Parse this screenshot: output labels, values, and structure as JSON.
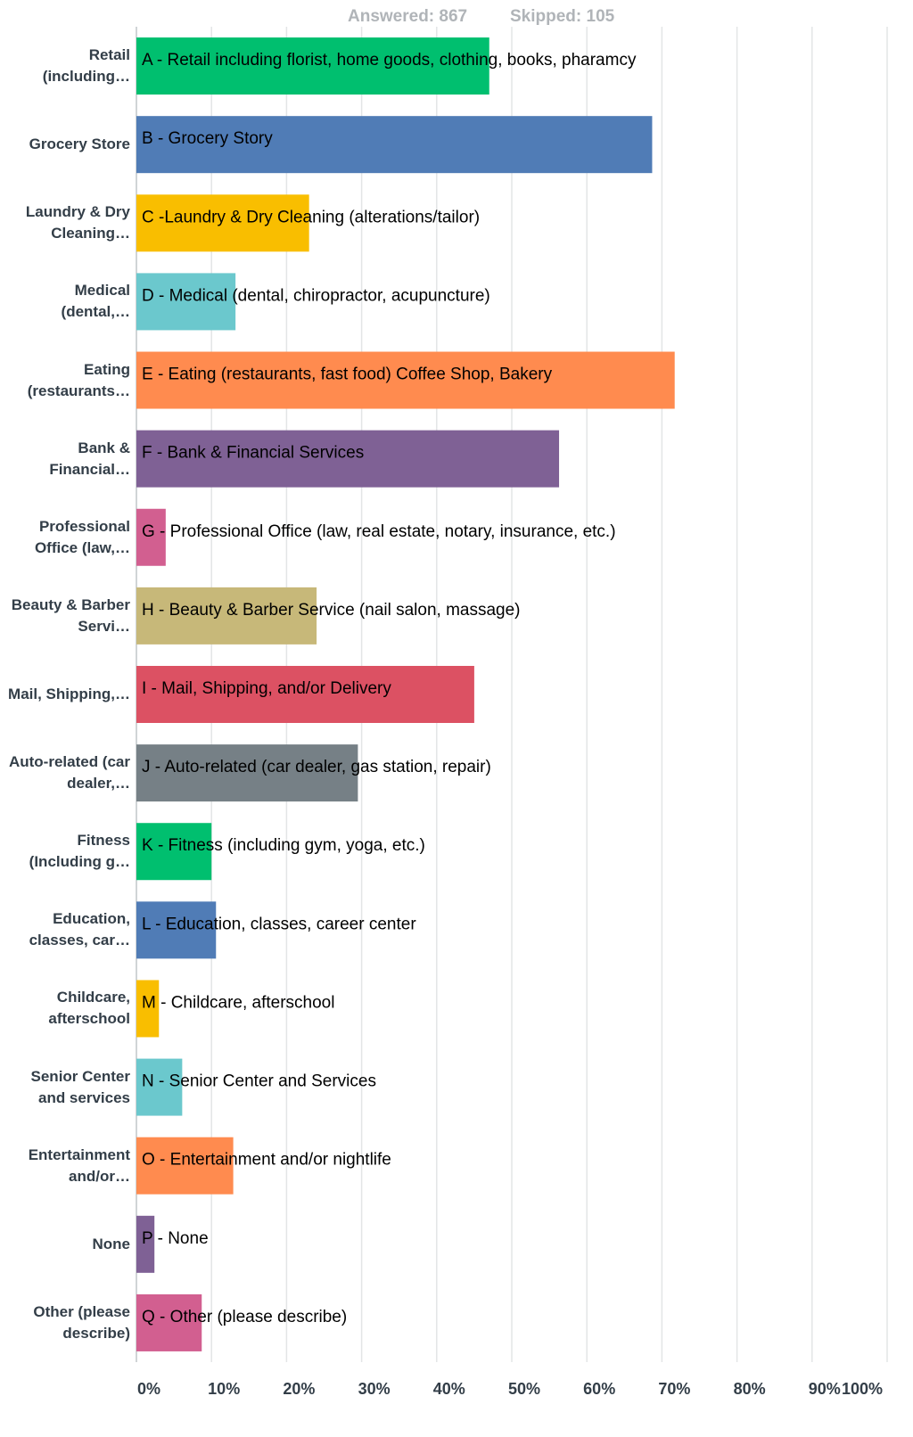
{
  "chart_data": {
    "type": "bar",
    "orientation": "horizontal",
    "answered": "Answered: 867",
    "skipped": "Skipped: 105",
    "categories": [
      "Retail (including…",
      "Grocery Store",
      "Laundry & Dry Cleaning…",
      "Medical (dental,…",
      "Eating (restaurants…",
      "Bank & Financial…",
      "Professional Office (law,…",
      "Beauty & Barber Servi…",
      "Mail, Shipping,…",
      "Auto-related (car dealer,…",
      "Fitness (Including g…",
      "Education, classes, car…",
      "Childcare, afterschool",
      "Senior Center and services",
      "Entertainment and/or…",
      "None",
      "Other (please describe)"
    ],
    "values": [
      47,
      68.7,
      23,
      13.2,
      71.7,
      56.3,
      3.9,
      24,
      45,
      29.5,
      10,
      10.6,
      3,
      6.1,
      12.9,
      2.4,
      8.7
    ],
    "bar_labels": [
      "A - Retail including  florist, home goods, clothing, books, pharamcy",
      "B - Grocery Story",
      "C -Laundry & Dry Cleaning (alterations/tailor)",
      "D - Medical (dental, chiropractor, acupuncture)",
      "E - Eating (restaurants, fast food) Coffee Shop, Bakery",
      "F - Bank & Financial Services",
      "G - Professional Office (law, real estate, notary, insurance, etc.)",
      "H - Beauty & Barber Service (nail salon, massage)",
      "I - Mail, Shipping, and/or Delivery",
      "J - Auto-related (car dealer, gas station, repair)",
      "K - Fitness (including gym, yoga, etc.)",
      "L - Education, classes, career center",
      "M - Childcare, afterschool",
      "N - Senior Center and Services",
      "O - Entertainment and/or nightlife",
      "P - None",
      "Q - Other (please describe)"
    ],
    "colors": [
      "#00bf6f",
      "#507cb6",
      "#f9be00",
      "#6bc8cd",
      "#ff8b4f",
      "#7f6195",
      "#d25f90",
      "#c7b879",
      "#dc5163",
      "#768086",
      "#00bf6f",
      "#507cb6",
      "#f9be00",
      "#6bc8cd",
      "#ff8b4f",
      "#7f6195",
      "#d25f90"
    ],
    "xlim": [
      0,
      100
    ],
    "xticks": [
      {
        "value": 0,
        "label": "0%"
      },
      {
        "value": 10,
        "label": "10%"
      },
      {
        "value": 20,
        "label": "20%"
      },
      {
        "value": 30,
        "label": "30%"
      },
      {
        "value": 40,
        "label": "40%"
      },
      {
        "value": 50,
        "label": "50%"
      },
      {
        "value": 60,
        "label": "60%"
      },
      {
        "value": 70,
        "label": "70%"
      },
      {
        "value": 80,
        "label": "80%"
      },
      {
        "value": 90,
        "label": "90%"
      },
      {
        "value": 100,
        "label": "100%"
      }
    ],
    "grid": true
  }
}
